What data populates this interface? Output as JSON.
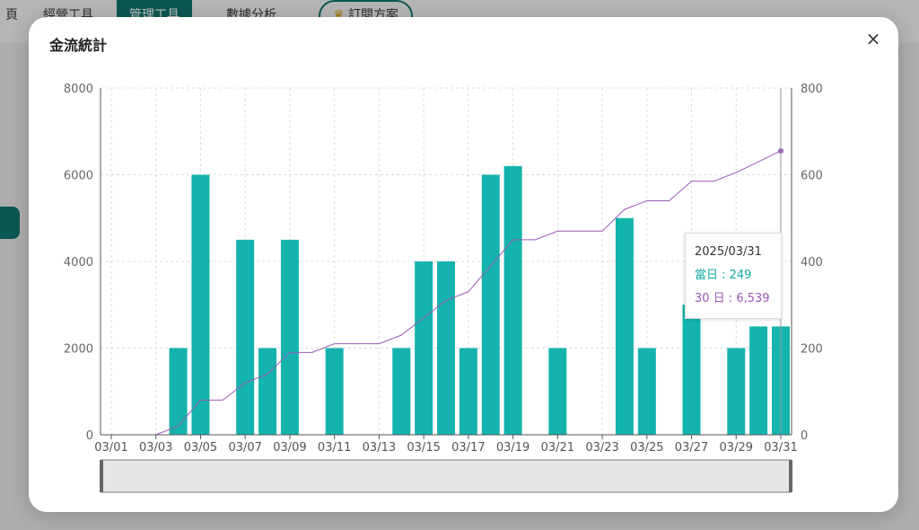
{
  "background": {
    "tabs": [
      {
        "label": "頁",
        "active": false
      },
      {
        "label": "經營工具",
        "active": false
      },
      {
        "label": "管理工具",
        "active": true
      },
      {
        "label": "數據分析",
        "active": false
      },
      {
        "label": "訂閱方案",
        "active": false,
        "icon": "crown-icon"
      }
    ]
  },
  "modal": {
    "title": "金流統計",
    "close_label": "×"
  },
  "tooltip": {
    "date": "2025/03/31",
    "daily_label": "當日 : 249",
    "cumulative_label": "30 日 : 6,539"
  },
  "colors": {
    "bar": "#15b3ad",
    "line": "#9b59b6",
    "grid": "#dddddd",
    "axis": "#555555"
  },
  "chart_data": {
    "type": "bar",
    "categories": [
      "03/01",
      "03/02",
      "03/03",
      "03/04",
      "03/05",
      "03/06",
      "03/07",
      "03/08",
      "03/09",
      "03/10",
      "03/11",
      "03/12",
      "03/13",
      "03/14",
      "03/15",
      "03/16",
      "03/17",
      "03/18",
      "03/19",
      "03/20",
      "03/21",
      "03/22",
      "03/23",
      "03/24",
      "03/25",
      "03/26",
      "03/27",
      "03/28",
      "03/29",
      "03/30",
      "03/31"
    ],
    "xtick_labels": [
      "03/01",
      "03/03",
      "03/05",
      "03/07",
      "03/09",
      "03/11",
      "03/13",
      "03/15",
      "03/17",
      "03/19",
      "03/21",
      "03/23",
      "03/25",
      "03/27",
      "03/29",
      "03/31"
    ],
    "series": [
      {
        "type": "bar",
        "axis": "left",
        "values": [
          0,
          0,
          0,
          2000,
          6000,
          0,
          4500,
          2000,
          4500,
          0,
          2000,
          0,
          0,
          2000,
          4000,
          4000,
          2000,
          6000,
          6200,
          0,
          2000,
          0,
          0,
          5000,
          2000,
          0,
          3000,
          0,
          2000,
          2500,
          2500
        ]
      },
      {
        "type": "line",
        "axis": "right",
        "values": [
          0,
          0,
          0,
          20,
          80,
          80,
          120,
          140,
          190,
          190,
          210,
          210,
          210,
          230,
          270,
          310,
          330,
          390,
          450,
          450,
          470,
          470,
          470,
          520,
          540,
          540,
          585,
          585,
          605,
          630,
          655
        ]
      }
    ],
    "ylim_left": [
      0,
      8000
    ],
    "yticks_left": [
      "0",
      "2000",
      "4000",
      "6000",
      "8000"
    ],
    "ylim_right": [
      0,
      800
    ],
    "yticks_right": [
      "0",
      "200",
      "400",
      "600",
      "800"
    ],
    "grid": true
  }
}
